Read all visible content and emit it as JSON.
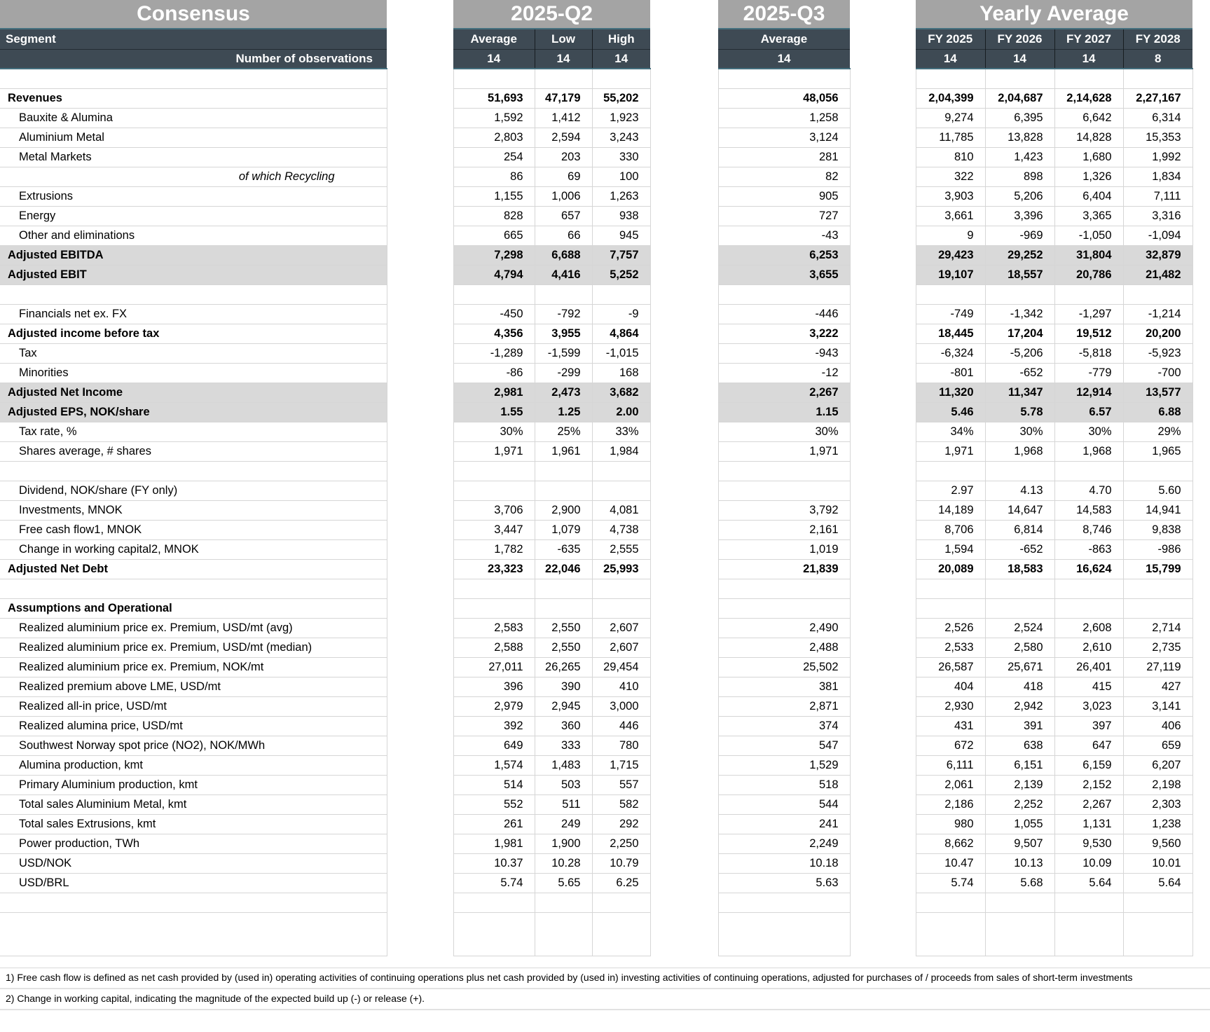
{
  "title_bands": {
    "consensus": "Consensus",
    "q2": "2025-Q2",
    "q3": "2025-Q3",
    "yearly": "Yearly Average"
  },
  "column_headers": {
    "segment": "Segment",
    "observations_label": "Number of observations",
    "q2": [
      "Average",
      "Low",
      "High"
    ],
    "q3": [
      "Average"
    ],
    "fy": [
      "FY 2025",
      "FY 2026",
      "FY 2027",
      "FY 2028"
    ],
    "observations": {
      "q2": [
        "14",
        "14",
        "14"
      ],
      "q3": [
        "14"
      ],
      "fy": [
        "14",
        "14",
        "14",
        "8"
      ]
    }
  },
  "colors": {
    "band_gray": "#a4a4a4",
    "header_dark": "#3e4a54",
    "header_accent_border": "#45707f",
    "row_highlight": "#d9d9d9",
    "gridline": "#d6d6d6"
  },
  "rows": [
    {
      "type": "spacer"
    },
    {
      "label": "Revenues",
      "style": "bold",
      "q2": [
        "51,693",
        "47,179",
        "55,202"
      ],
      "q3": "48,056",
      "fy": [
        "2,04,399",
        "2,04,687",
        "2,14,628",
        "2,27,167"
      ]
    },
    {
      "label": "Bauxite & Alumina",
      "q2": [
        "1,592",
        "1,412",
        "1,923"
      ],
      "q3": "1,258",
      "fy": [
        "9,274",
        "6,395",
        "6,642",
        "6,314"
      ]
    },
    {
      "label": "Aluminium Metal",
      "q2": [
        "2,803",
        "2,594",
        "3,243"
      ],
      "q3": "3,124",
      "fy": [
        "11,785",
        "13,828",
        "14,828",
        "15,353"
      ]
    },
    {
      "label": "Metal Markets",
      "q2": [
        "254",
        "203",
        "330"
      ],
      "q3": "281",
      "fy": [
        "810",
        "1,423",
        "1,680",
        "1,992"
      ]
    },
    {
      "label": "of which Recycling",
      "style": "italic",
      "q2": [
        "86",
        "69",
        "100"
      ],
      "q3": "82",
      "fy": [
        "322",
        "898",
        "1,326",
        "1,834"
      ]
    },
    {
      "label": "Extrusions",
      "q2": [
        "1,155",
        "1,006",
        "1,263"
      ],
      "q3": "905",
      "fy": [
        "3,903",
        "5,206",
        "6,404",
        "7,111"
      ]
    },
    {
      "label": "Energy",
      "q2": [
        "828",
        "657",
        "938"
      ],
      "q3": "727",
      "fy": [
        "3,661",
        "3,396",
        "3,365",
        "3,316"
      ]
    },
    {
      "label": "Other and eliminations",
      "q2": [
        "665",
        "66",
        "945"
      ],
      "q3": "-43",
      "fy": [
        "9",
        "-969",
        "-1,050",
        "-1,094"
      ]
    },
    {
      "label": "Adjusted EBITDA",
      "style": "bold",
      "highlight": true,
      "q2": [
        "7,298",
        "6,688",
        "7,757"
      ],
      "q3": "6,253",
      "fy": [
        "29,423",
        "29,252",
        "31,804",
        "32,879"
      ]
    },
    {
      "label": "Adjusted EBIT",
      "style": "bold",
      "highlight": true,
      "q2": [
        "4,794",
        "4,416",
        "5,252"
      ],
      "q3": "3,655",
      "fy": [
        "19,107",
        "18,557",
        "20,786",
        "21,482"
      ]
    },
    {
      "type": "spacer"
    },
    {
      "label": "Financials net ex. FX",
      "q2": [
        "-450",
        "-792",
        "-9"
      ],
      "q3": "-446",
      "fy": [
        "-749",
        "-1,342",
        "-1,297",
        "-1,214"
      ]
    },
    {
      "label": "Adjusted income before tax",
      "style": "bold",
      "q2": [
        "4,356",
        "3,955",
        "4,864"
      ],
      "q3": "3,222",
      "fy": [
        "18,445",
        "17,204",
        "19,512",
        "20,200"
      ]
    },
    {
      "label": "Tax",
      "q2": [
        "-1,289",
        "-1,599",
        "-1,015"
      ],
      "q3": "-943",
      "fy": [
        "-6,324",
        "-5,206",
        "-5,818",
        "-5,923"
      ]
    },
    {
      "label": "Minorities",
      "q2": [
        "-86",
        "-299",
        "168"
      ],
      "q3": "-12",
      "fy": [
        "-801",
        "-652",
        "-779",
        "-700"
      ]
    },
    {
      "label": "Adjusted Net Income",
      "style": "bold",
      "highlight": true,
      "q2": [
        "2,981",
        "2,473",
        "3,682"
      ],
      "q3": "2,267",
      "fy": [
        "11,320",
        "11,347",
        "12,914",
        "13,577"
      ]
    },
    {
      "label": "Adjusted EPS, NOK/share",
      "style": "bold",
      "highlight": true,
      "q2": [
        "1.55",
        "1.25",
        "2.00"
      ],
      "q3": "1.15",
      "fy": [
        "5.46",
        "5.78",
        "6.57",
        "6.88"
      ]
    },
    {
      "label": "Tax rate, %",
      "q2": [
        "30%",
        "25%",
        "33%"
      ],
      "q3": "30%",
      "fy": [
        "34%",
        "30%",
        "30%",
        "29%"
      ]
    },
    {
      "label": "Shares average, # shares",
      "q2": [
        "1,971",
        "1,961",
        "1,984"
      ],
      "q3": "1,971",
      "fy": [
        "1,971",
        "1,968",
        "1,968",
        "1,965"
      ]
    },
    {
      "type": "spacer"
    },
    {
      "label": "Dividend, NOK/share (FY only)",
      "q2": [
        "",
        "",
        ""
      ],
      "q3": "",
      "fy": [
        "2.97",
        "4.13",
        "4.70",
        "5.60"
      ]
    },
    {
      "label": "Investments, MNOK",
      "q2": [
        "3,706",
        "2,900",
        "4,081"
      ],
      "q3": "3,792",
      "fy": [
        "14,189",
        "14,647",
        "14,583",
        "14,941"
      ]
    },
    {
      "label": "Free cash flow1, MNOK",
      "q2": [
        "3,447",
        "1,079",
        "4,738"
      ],
      "q3": "2,161",
      "fy": [
        "8,706",
        "6,814",
        "8,746",
        "9,838"
      ]
    },
    {
      "label": "Change in working capital2, MNOK",
      "q2": [
        "1,782",
        "-635",
        "2,555"
      ],
      "q3": "1,019",
      "fy": [
        "1,594",
        "-652",
        "-863",
        "-986"
      ]
    },
    {
      "label": "Adjusted Net Debt",
      "style": "bold",
      "q2": [
        "23,323",
        "22,046",
        "25,993"
      ],
      "q3": "21,839",
      "fy": [
        "20,089",
        "18,583",
        "16,624",
        "15,799"
      ]
    },
    {
      "type": "spacer"
    },
    {
      "label": "Assumptions and Operational",
      "style": "bold",
      "q2": [
        "",
        "",
        ""
      ],
      "q3": "",
      "fy": [
        "",
        "",
        "",
        ""
      ]
    },
    {
      "label": "Realized aluminium price ex. Premium, USD/mt (avg)",
      "q2": [
        "2,583",
        "2,550",
        "2,607"
      ],
      "q3": "2,490",
      "fy": [
        "2,526",
        "2,524",
        "2,608",
        "2,714"
      ]
    },
    {
      "label": "Realized aluminium price ex. Premium, USD/mt (median)",
      "q2": [
        "2,588",
        "2,550",
        "2,607"
      ],
      "q3": "2,488",
      "fy": [
        "2,533",
        "2,580",
        "2,610",
        "2,735"
      ]
    },
    {
      "label": "Realized aluminium price ex. Premium, NOK/mt",
      "q2": [
        "27,011",
        "26,265",
        "29,454"
      ],
      "q3": "25,502",
      "fy": [
        "26,587",
        "25,671",
        "26,401",
        "27,119"
      ]
    },
    {
      "label": "Realized premium above LME, USD/mt",
      "q2": [
        "396",
        "390",
        "410"
      ],
      "q3": "381",
      "fy": [
        "404",
        "418",
        "415",
        "427"
      ]
    },
    {
      "label": "Realized all-in price, USD/mt",
      "q2": [
        "2,979",
        "2,945",
        "3,000"
      ],
      "q3": "2,871",
      "fy": [
        "2,930",
        "2,942",
        "3,023",
        "3,141"
      ]
    },
    {
      "label": "Realized alumina price, USD/mt",
      "q2": [
        "392",
        "360",
        "446"
      ],
      "q3": "374",
      "fy": [
        "431",
        "391",
        "397",
        "406"
      ]
    },
    {
      "label": "Southwest Norway spot price (NO2), NOK/MWh",
      "q2": [
        "649",
        "333",
        "780"
      ],
      "q3": "547",
      "fy": [
        "672",
        "638",
        "647",
        "659"
      ]
    },
    {
      "label": "Alumina production, kmt",
      "q2": [
        "1,574",
        "1,483",
        "1,715"
      ],
      "q3": "1,529",
      "fy": [
        "6,111",
        "6,151",
        "6,159",
        "6,207"
      ]
    },
    {
      "label": "Primary Aluminium production, kmt",
      "q2": [
        "514",
        "503",
        "557"
      ],
      "q3": "518",
      "fy": [
        "2,061",
        "2,139",
        "2,152",
        "2,198"
      ]
    },
    {
      "label": "Total sales Aluminium Metal, kmt",
      "q2": [
        "552",
        "511",
        "582"
      ],
      "q3": "544",
      "fy": [
        "2,186",
        "2,252",
        "2,267",
        "2,303"
      ]
    },
    {
      "label": "Total sales Extrusions, kmt",
      "q2": [
        "261",
        "249",
        "292"
      ],
      "q3": "241",
      "fy": [
        "980",
        "1,055",
        "1,131",
        "1,238"
      ]
    },
    {
      "label": "Power production, TWh",
      "q2": [
        "1,981",
        "1,900",
        "2,250"
      ],
      "q3": "2,249",
      "fy": [
        "8,662",
        "9,507",
        "9,530",
        "9,560"
      ]
    },
    {
      "label": "USD/NOK",
      "q2": [
        "10.37",
        "10.28",
        "10.79"
      ],
      "q3": "10.18",
      "fy": [
        "10.47",
        "10.13",
        "10.09",
        "10.01"
      ]
    },
    {
      "label": "USD/BRL",
      "q2": [
        "5.74",
        "5.65",
        "6.25"
      ],
      "q3": "5.63",
      "fy": [
        "5.74",
        "5.68",
        "5.64",
        "5.64"
      ]
    },
    {
      "type": "spacer"
    },
    {
      "type": "spacer",
      "tall": true
    }
  ],
  "footnotes": [
    "1) Free cash flow is defined as net cash provided by (used in) operating activities of continuing operations plus net cash provided by (used in) investing activities of continuing operations, adjusted for purchases of / proceeds from sales of short-term investments",
    "2) Change in working capital, indicating the magnitude of the expected build up (-) or release (+)."
  ]
}
